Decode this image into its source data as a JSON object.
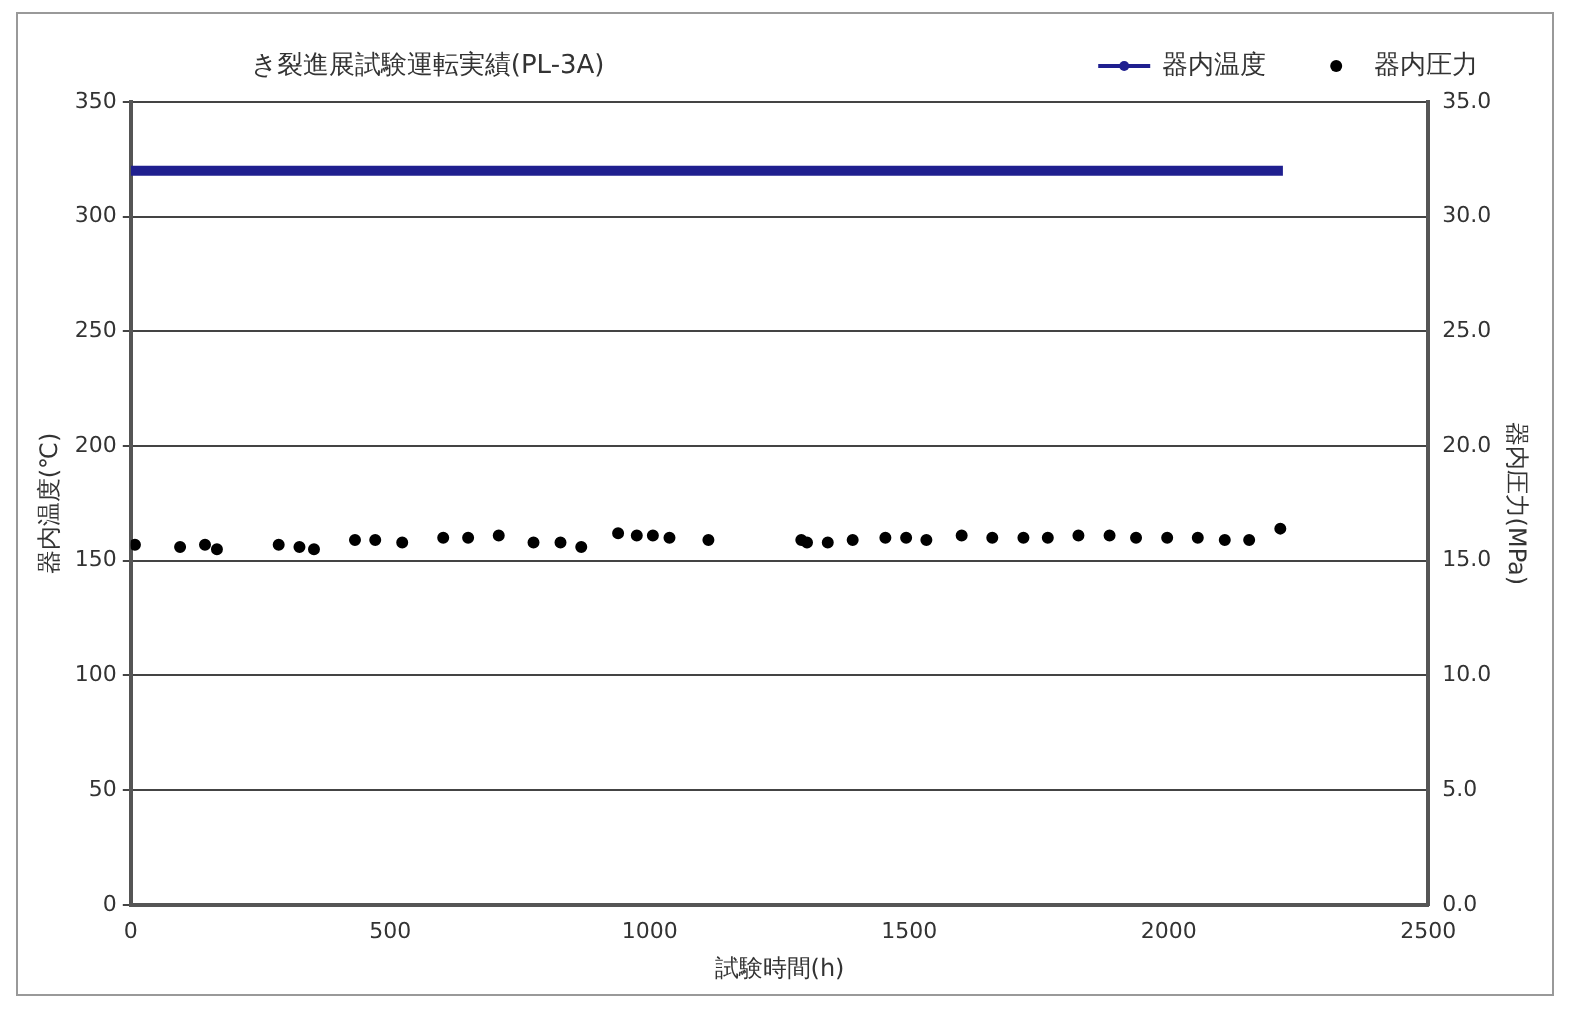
{
  "chart_data": {
    "type": "scatter",
    "title": "き裂進展試験運転実績(PL-3A)",
    "xlabel": "試験時間(h)",
    "ylabel": "器内温度(℃)",
    "y2label": "器内圧力(MPa)",
    "xlim": [
      0,
      2500
    ],
    "xticks": [
      0,
      500,
      1000,
      1500,
      2000,
      2500
    ],
    "ylim": [
      0,
      350
    ],
    "yticks": [
      0,
      50,
      100,
      150,
      200,
      250,
      300,
      350
    ],
    "y2lim": [
      0,
      35
    ],
    "y2ticks": [
      {
        "value": 0,
        "label": "0.0"
      },
      {
        "value": 5,
        "label": "5.0"
      },
      {
        "value": 10,
        "label": "10.0"
      },
      {
        "value": 15,
        "label": "15.0"
      },
      {
        "value": 20,
        "label": "20.0"
      },
      {
        "value": 25,
        "label": "25.0"
      },
      {
        "value": 30,
        "label": "30.0"
      },
      {
        "value": 35,
        "label": "35.0"
      }
    ],
    "grid": "y",
    "legend": "top right",
    "series": [
      {
        "name": "器内温度",
        "type": "line",
        "color": "#1f1f8f",
        "x": [
          0,
          2220
        ],
        "values": [
          320,
          320
        ]
      },
      {
        "name": "器内圧力",
        "axis": "y2",
        "color": "#000000",
        "marker": "circle",
        "x": [
          8,
          95,
          143,
          166,
          285,
          325,
          353,
          432,
          471,
          523,
          602,
          650,
          709,
          776,
          828,
          868,
          939,
          975,
          1006,
          1038,
          1113,
          1303,
          1292,
          1343,
          1391,
          1454,
          1494,
          1533,
          1601,
          1660,
          1720,
          1767,
          1826,
          1886,
          1937,
          1997,
          2056,
          2108,
          2155,
          2215
        ],
        "values": [
          15.7,
          15.6,
          15.7,
          15.5,
          15.7,
          15.6,
          15.5,
          15.9,
          15.9,
          15.8,
          16.0,
          16.0,
          16.1,
          15.8,
          15.8,
          15.6,
          16.2,
          16.1,
          16.1,
          16.0,
          15.9,
          15.8,
          15.9,
          15.8,
          15.9,
          16.0,
          16.0,
          15.9,
          16.1,
          16.0,
          16.0,
          16.0,
          16.1,
          16.1,
          16.0,
          16.0,
          16.0,
          15.9,
          15.9,
          16.4
        ]
      }
    ]
  }
}
